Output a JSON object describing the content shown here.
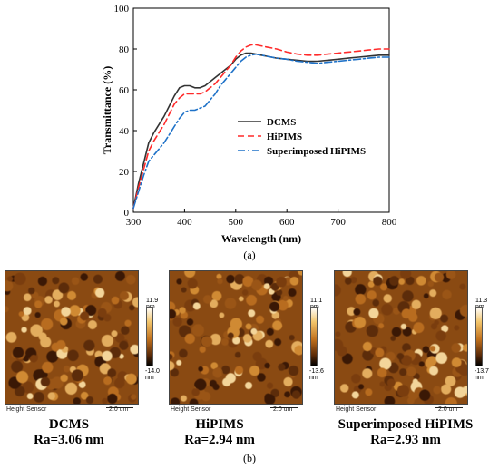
{
  "chart_data": {
    "type": "line",
    "xlabel": "Wavelength (nm)",
    "ylabel": "Transmittance (%)",
    "xlim": [
      300,
      800
    ],
    "ylim": [
      0,
      100
    ],
    "xticks": [
      300,
      400,
      500,
      600,
      700,
      800
    ],
    "yticks": [
      0,
      20,
      40,
      60,
      80,
      100
    ],
    "grid": false,
    "legend_position": "center-right",
    "series": [
      {
        "name": "DCMS",
        "color": "#333333",
        "dash": "solid",
        "x": [
          300,
          310,
          320,
          330,
          340,
          350,
          360,
          370,
          380,
          390,
          400,
          410,
          420,
          430,
          440,
          450,
          460,
          470,
          480,
          490,
          500,
          510,
          520,
          530,
          540,
          550,
          560,
          570,
          580,
          600,
          620,
          640,
          660,
          680,
          700,
          720,
          740,
          760,
          780,
          800
        ],
        "y": [
          2,
          14,
          24,
          34,
          39,
          43,
          47,
          52,
          57,
          61,
          62,
          62,
          61,
          61,
          62,
          64,
          66,
          68,
          70,
          72,
          75,
          77,
          78,
          78,
          77.5,
          77,
          76.5,
          76,
          75.5,
          75,
          74.5,
          74,
          74,
          74.5,
          75,
          75.5,
          76,
          76.5,
          77,
          77
        ]
      },
      {
        "name": "HiPIMS",
        "color": "#ff2a2a",
        "dash": "dashed",
        "x": [
          300,
          310,
          320,
          330,
          340,
          350,
          360,
          370,
          380,
          390,
          400,
          410,
          420,
          430,
          440,
          450,
          460,
          470,
          480,
          490,
          500,
          510,
          520,
          530,
          540,
          550,
          560,
          570,
          580,
          600,
          620,
          640,
          660,
          680,
          700,
          720,
          740,
          760,
          780,
          800
        ],
        "y": [
          2,
          12,
          21,
          30,
          35,
          39,
          43,
          48,
          53,
          56,
          58,
          58,
          58,
          58,
          59,
          61,
          63,
          66,
          69,
          72,
          76,
          79,
          81,
          82,
          82,
          81.5,
          81,
          80.5,
          80,
          78.5,
          77.5,
          77,
          77,
          77.5,
          78,
          78.5,
          79,
          79.5,
          80,
          80
        ]
      },
      {
        "name": "Superimposed HiPIMS",
        "color": "#1f72c8",
        "dash": "dashdot",
        "x": [
          300,
          310,
          320,
          330,
          340,
          350,
          360,
          370,
          380,
          390,
          400,
          410,
          420,
          430,
          440,
          450,
          460,
          470,
          480,
          490,
          500,
          510,
          520,
          530,
          540,
          550,
          560,
          570,
          580,
          600,
          620,
          640,
          660,
          680,
          700,
          720,
          740,
          760,
          780,
          800
        ],
        "y": [
          2,
          10,
          18,
          25,
          28,
          31,
          34,
          38,
          42,
          46,
          49,
          50,
          50,
          51,
          52,
          55,
          58,
          62,
          65,
          68,
          71,
          74,
          76,
          77,
          77.5,
          77,
          76.5,
          76,
          75.5,
          75,
          74,
          73.5,
          73,
          73.5,
          74,
          74.5,
          75,
          75.5,
          76,
          76
        ]
      }
    ]
  },
  "panel_a_label": "(a)",
  "panel_b_label": "(b)",
  "afm_panels": [
    {
      "sensor_label": "Height Sensor",
      "scale_label": "2.0 um",
      "color_max": "11.9 nm",
      "color_min": "-14.0 nm",
      "title": "DCMS",
      "roughness": "Ra=3.06 nm"
    },
    {
      "sensor_label": "Height Sensor",
      "scale_label": "2.0 um",
      "color_max": "11.1 nm",
      "color_min": "-13.6 nm",
      "title": "HiPIMS",
      "roughness": "Ra=2.94 nm"
    },
    {
      "sensor_label": "Height Sensor",
      "scale_label": "2.0 um",
      "color_max": "11.3 nm",
      "color_min": "-13.7 nm",
      "title": "Superimposed HiPIMS",
      "roughness": "Ra=2.93 nm"
    }
  ]
}
